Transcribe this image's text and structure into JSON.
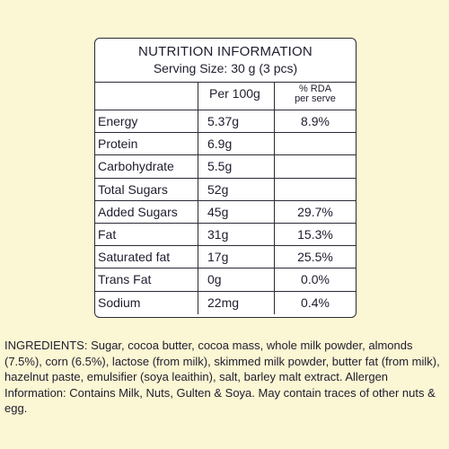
{
  "nutrition": {
    "title": "NUTRITION INFORMATION",
    "serving": "Serving Size: 30 g (3 pcs)",
    "col_per100": "Per 100g",
    "col_rda_line1": "% RDA",
    "col_rda_line2": "per serve",
    "rows": [
      {
        "name": "Energy",
        "per100": "5.37g",
        "rda": "8.9%"
      },
      {
        "name": "Protein",
        "per100": "6.9g",
        "rda": ""
      },
      {
        "name": "Carbohydrate",
        "per100": "5.5g",
        "rda": ""
      },
      {
        "name": "Total Sugars",
        "per100": "52g",
        "rda": ""
      },
      {
        "name": "Added Sugars",
        "per100": "45g",
        "rda": "29.7%"
      },
      {
        "name": "Fat",
        "per100": "31g",
        "rda": "15.3%"
      },
      {
        "name": "Saturated fat",
        "per100": "17g",
        "rda": "25.5%"
      },
      {
        "name": "Trans Fat",
        "per100": "0g",
        "rda": "0.0%"
      },
      {
        "name": "Sodium",
        "per100": "22mg",
        "rda": "0.4%"
      }
    ]
  },
  "ingredients": {
    "text": "INGREDIENTS: Sugar, cocoa butter, cocoa mass, whole milk powder, almonds (7.5%), corn (6.5%), lactose (from milk), skimmed milk powder, butter fat (from milk), hazelnut paste, emulsifier (soya leaithin), salt, barley malt extract. Allergen Information: Contains Milk, Nuts, Gulten & Soya. May contain traces of other nuts & egg."
  }
}
